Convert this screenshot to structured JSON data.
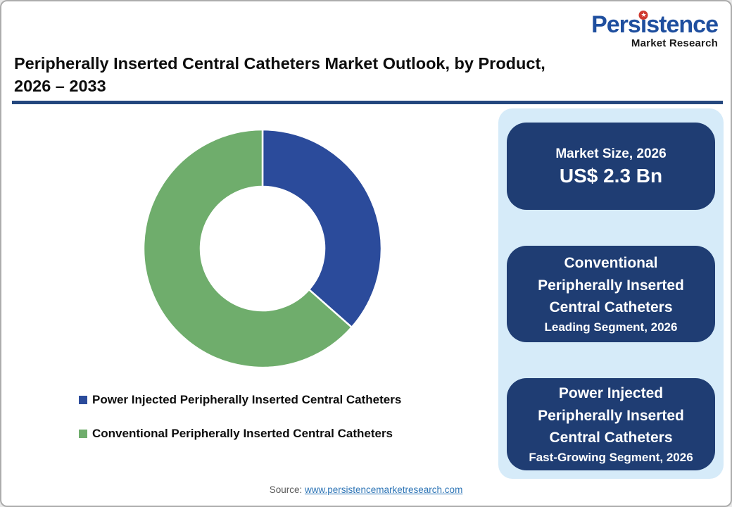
{
  "brand": {
    "name_pre": "Pers",
    "name_i": "i",
    "name_post": "stence",
    "subtitle": "Market Research",
    "star_glyph": "★",
    "logo_color": "#1F4F9F",
    "star_color": "#D03A30"
  },
  "header": {
    "title_line1": "Peripherally Inserted Central Catheters Market Outlook, by Product,",
    "title_line2": "2026 – 2033",
    "rule_color": "#24477E"
  },
  "chart_data": {
    "type": "pie",
    "subtype": "donut",
    "title": "Peripherally Inserted Central Catheters Market Outlook, by Product, 2026 – 2033",
    "series": [
      {
        "name": "Power Injected Peripherally Inserted Central Catheters",
        "value": 36.5,
        "color": "#2B4B9B"
      },
      {
        "name": "Conventional Peripherally Inserted Central Catheters",
        "value": 63.5,
        "color": "#6FAD6C"
      }
    ],
    "values_unit": "% share (estimated from arc angles)",
    "start_angle_deg": 0,
    "direction": "clockwise",
    "inner_radius_ratio": 0.52,
    "slice_divider_color": "#FFFFFF",
    "legend_position": "below-left"
  },
  "panel": {
    "background": "#D6EBF9",
    "card_background": "#1F3D73",
    "cards": [
      {
        "title": "Market Size, 2026",
        "value": "US$ 2.3 Bn"
      },
      {
        "title": "Conventional Peripherally Inserted Central Catheters",
        "subtitle": "Leading Segment, 2026"
      },
      {
        "title": "Power Injected Peripherally Inserted Central Catheters",
        "subtitle": "Fast-Growing Segment, 2026"
      }
    ]
  },
  "footer": {
    "source_label": "Source:",
    "source_link": "www.persistencemarketresearch.com"
  }
}
